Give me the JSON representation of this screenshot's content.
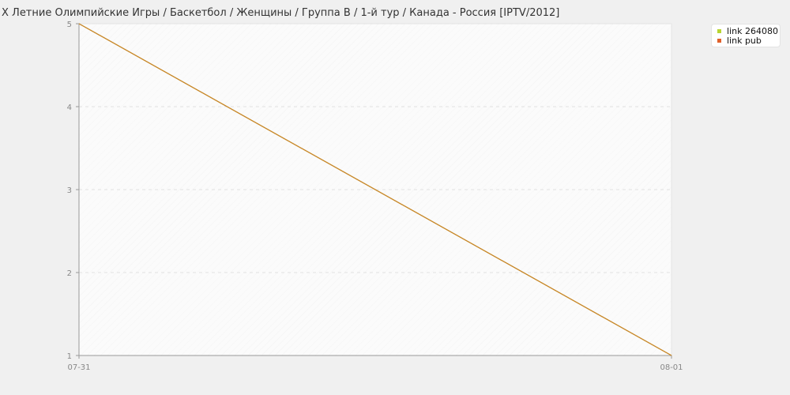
{
  "title": "X Летние Олимпийские Игры / Баскетбол / Женщины / Группа B / 1-й тур / Канада - Россия [IPTV/2012]",
  "legend": [
    {
      "label": "link 264080",
      "color": "#b8d432"
    },
    {
      "label": "link pub",
      "color": "#e0602a"
    }
  ],
  "chart_data": {
    "type": "line",
    "title": "X Летние Олимпийские Игры / Баскетбол / Женщины / Группа B / 1-й тур / Канада - Россия [IPTV/2012]",
    "categories": [
      "07-31",
      "08-01"
    ],
    "x_ticks": [
      "07-31",
      "08-01"
    ],
    "y_ticks": [
      1,
      2,
      3,
      4,
      5
    ],
    "ylim": [
      1,
      5
    ],
    "grid": "horizontal dashed",
    "legend_position": "top-right",
    "series": [
      {
        "name": "link 264080",
        "color": "#b8d432",
        "values": [
          5,
          1
        ]
      },
      {
        "name": "link pub",
        "color": "#e0602a",
        "values": [
          5,
          1
        ]
      }
    ],
    "line_color": "#c8892a"
  }
}
